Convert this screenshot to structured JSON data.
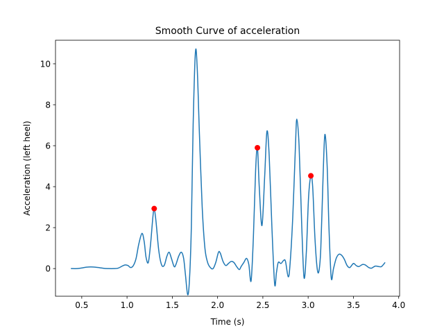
{
  "chart_data": {
    "type": "line",
    "title": "Smooth Curve of acceleration",
    "xlabel": "Time (s)",
    "ylabel": "Acceleration (left heel)",
    "xlim": [
      0.21,
      4.01
    ],
    "ylim": [
      -1.35,
      11.15
    ],
    "x_ticks": [
      0.5,
      1.0,
      1.5,
      2.0,
      2.5,
      3.0,
      3.5,
      4.0
    ],
    "x_tick_labels": [
      "0.5",
      "1.0",
      "1.5",
      "2.0",
      "2.5",
      "3.0",
      "3.5",
      "4.0"
    ],
    "y_ticks": [
      0,
      2,
      4,
      6,
      8,
      10
    ],
    "y_tick_labels": [
      "0",
      "2",
      "4",
      "6",
      "8",
      "10"
    ],
    "grid": false,
    "series": [
      {
        "color": "#1f77b4",
        "points": [
          [
            0.38,
            0.0
          ],
          [
            0.45,
            0.0
          ],
          [
            0.5,
            0.03
          ],
          [
            0.55,
            0.07
          ],
          [
            0.6,
            0.08
          ],
          [
            0.65,
            0.07
          ],
          [
            0.7,
            0.04
          ],
          [
            0.75,
            0.01
          ],
          [
            0.8,
            0.0
          ],
          [
            0.85,
            0.0
          ],
          [
            0.9,
            0.02
          ],
          [
            0.95,
            0.13
          ],
          [
            0.98,
            0.18
          ],
          [
            1.01,
            0.15
          ],
          [
            1.04,
            0.05
          ],
          [
            1.07,
            0.15
          ],
          [
            1.1,
            0.5
          ],
          [
            1.13,
            1.2
          ],
          [
            1.165,
            1.72
          ],
          [
            1.19,
            1.3
          ],
          [
            1.21,
            0.55
          ],
          [
            1.235,
            0.3
          ],
          [
            1.26,
            1.2
          ],
          [
            1.285,
            2.5
          ],
          [
            1.3,
            2.93
          ],
          [
            1.32,
            2.3
          ],
          [
            1.35,
            0.9
          ],
          [
            1.38,
            0.2
          ],
          [
            1.41,
            0.15
          ],
          [
            1.44,
            0.6
          ],
          [
            1.465,
            0.8
          ],
          [
            1.49,
            0.5
          ],
          [
            1.52,
            0.1
          ],
          [
            1.54,
            0.2
          ],
          [
            1.57,
            0.6
          ],
          [
            1.6,
            0.8
          ],
          [
            1.625,
            0.5
          ],
          [
            1.645,
            -0.3
          ],
          [
            1.67,
            -1.28
          ],
          [
            1.69,
            -0.5
          ],
          [
            1.71,
            2.0
          ],
          [
            1.73,
            7.0
          ],
          [
            1.755,
            10.55
          ],
          [
            1.775,
            9.8
          ],
          [
            1.8,
            6.5
          ],
          [
            1.83,
            3.0
          ],
          [
            1.86,
            1.0
          ],
          [
            1.89,
            0.3
          ],
          [
            1.92,
            0.05
          ],
          [
            1.95,
            0.0
          ],
          [
            1.98,
            0.3
          ],
          [
            2.01,
            0.8
          ],
          [
            2.03,
            0.75
          ],
          [
            2.06,
            0.35
          ],
          [
            2.09,
            0.15
          ],
          [
            2.12,
            0.25
          ],
          [
            2.15,
            0.35
          ],
          [
            2.18,
            0.3
          ],
          [
            2.21,
            0.1
          ],
          [
            2.24,
            -0.05
          ],
          [
            2.26,
            0.1
          ],
          [
            2.29,
            0.3
          ],
          [
            2.32,
            0.5
          ],
          [
            2.345,
            0.2
          ],
          [
            2.37,
            -0.6
          ],
          [
            2.395,
            1.5
          ],
          [
            2.42,
            4.8
          ],
          [
            2.44,
            5.9
          ],
          [
            2.46,
            4.0
          ],
          [
            2.49,
            2.1
          ],
          [
            2.52,
            4.5
          ],
          [
            2.545,
            6.7
          ],
          [
            2.57,
            5.5
          ],
          [
            2.6,
            2.0
          ],
          [
            2.63,
            -0.75
          ],
          [
            2.65,
            -0.2
          ],
          [
            2.67,
            0.3
          ],
          [
            2.7,
            0.25
          ],
          [
            2.73,
            0.4
          ],
          [
            2.75,
            0.35
          ],
          [
            2.78,
            -0.4
          ],
          [
            2.8,
            0.2
          ],
          [
            2.83,
            2.5
          ],
          [
            2.86,
            6.0
          ],
          [
            2.875,
            7.3
          ],
          [
            2.9,
            6.0
          ],
          [
            2.93,
            2.0
          ],
          [
            2.955,
            -0.45
          ],
          [
            2.98,
            0.8
          ],
          [
            3.005,
            3.5
          ],
          [
            3.03,
            4.5
          ],
          [
            3.05,
            4.0
          ],
          [
            3.075,
            1.5
          ],
          [
            3.1,
            0.0
          ],
          [
            3.12,
            -0.1
          ],
          [
            3.14,
            1.0
          ],
          [
            3.165,
            4.5
          ],
          [
            3.185,
            6.55
          ],
          [
            3.21,
            5.0
          ],
          [
            3.23,
            2.0
          ],
          [
            3.255,
            -0.45
          ],
          [
            3.28,
            0.0
          ],
          [
            3.31,
            0.5
          ],
          [
            3.34,
            0.7
          ],
          [
            3.37,
            0.65
          ],
          [
            3.4,
            0.45
          ],
          [
            3.43,
            0.15
          ],
          [
            3.46,
            0.05
          ],
          [
            3.5,
            0.25
          ],
          [
            3.53,
            0.15
          ],
          [
            3.56,
            0.1
          ],
          [
            3.6,
            0.2
          ],
          [
            3.63,
            0.18
          ],
          [
            3.67,
            0.05
          ],
          [
            3.7,
            0.02
          ],
          [
            3.74,
            0.12
          ],
          [
            3.78,
            0.1
          ],
          [
            3.81,
            0.1
          ],
          [
            3.85,
            0.3
          ]
        ]
      }
    ],
    "markers": {
      "color": "#ff0000",
      "points": [
        [
          1.3,
          2.93
        ],
        [
          2.44,
          5.9
        ],
        [
          3.03,
          4.53
        ]
      ]
    }
  }
}
